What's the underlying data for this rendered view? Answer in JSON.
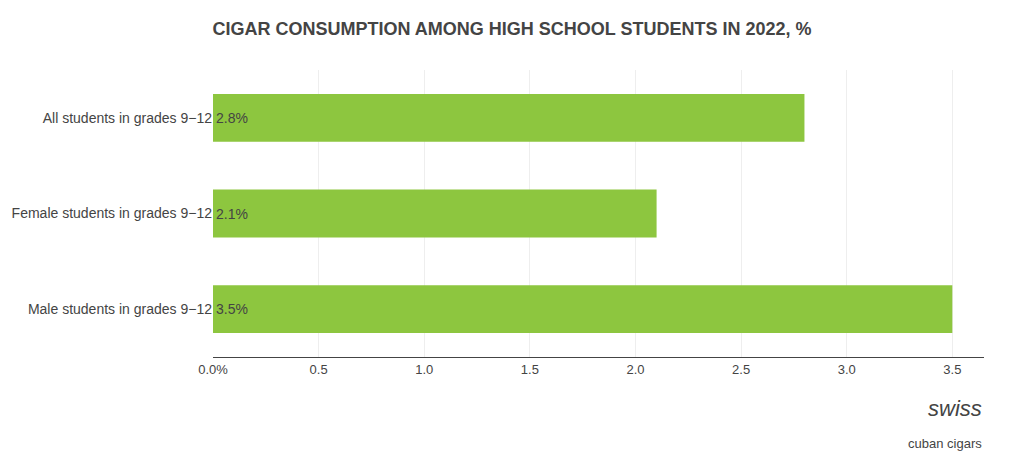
{
  "chart_data": {
    "type": "bar",
    "orientation": "horizontal",
    "title": "CIGAR CONSUMPTION AMONG HIGH SCHOOL STUDENTS IN 2022, %",
    "categories": [
      "All students in grades 9−12",
      "Female students in grades 9−12",
      "Male students in grades 9−12"
    ],
    "values": [
      2.8,
      2.1,
      3.5
    ],
    "value_labels": [
      "2.8%",
      "2.1%",
      "3.5%"
    ],
    "data_labels": true,
    "color": "#8DC63F",
    "xlim": [
      0,
      3.65
    ],
    "xticks": [
      {
        "value": 0.0,
        "label": "0.0%"
      },
      0.5,
      {
        "value": 1.0,
        "label": "1.0"
      },
      1.5,
      {
        "value": 2.0,
        "label": "2.0"
      },
      2.5,
      {
        "value": 3.0,
        "label": "3.0"
      },
      3.5
    ],
    "grid": true,
    "annotations": [
      "swiss",
      "cuban cigars"
    ]
  }
}
